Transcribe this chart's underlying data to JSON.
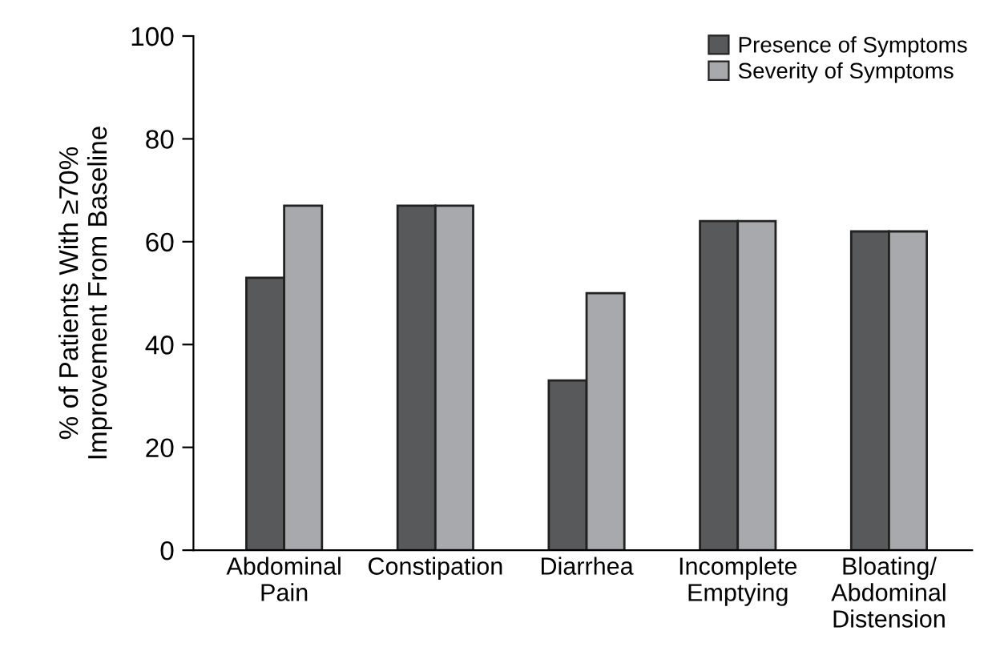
{
  "chart_data": {
    "type": "bar",
    "ylabel": "% of Patients With ≥70%\nImprovement From Baseline",
    "categories": [
      "Abdominal\nPain",
      "Constipation",
      "Diarrhea",
      "Incomplete\nEmptying",
      "Bloating/\nAbdominal\nDistension"
    ],
    "series": [
      {
        "name": "Presence of Symptoms",
        "color": "#58595b",
        "values": [
          53,
          67,
          33,
          64,
          62
        ]
      },
      {
        "name": "Severity of Symptoms",
        "color": "#a7a9ac",
        "values": [
          67,
          67,
          50,
          64,
          62
        ]
      }
    ],
    "ylim": [
      0,
      100
    ],
    "yticks": [
      0,
      20,
      40,
      60,
      80,
      100
    ],
    "grid": false,
    "legend": "top right"
  }
}
